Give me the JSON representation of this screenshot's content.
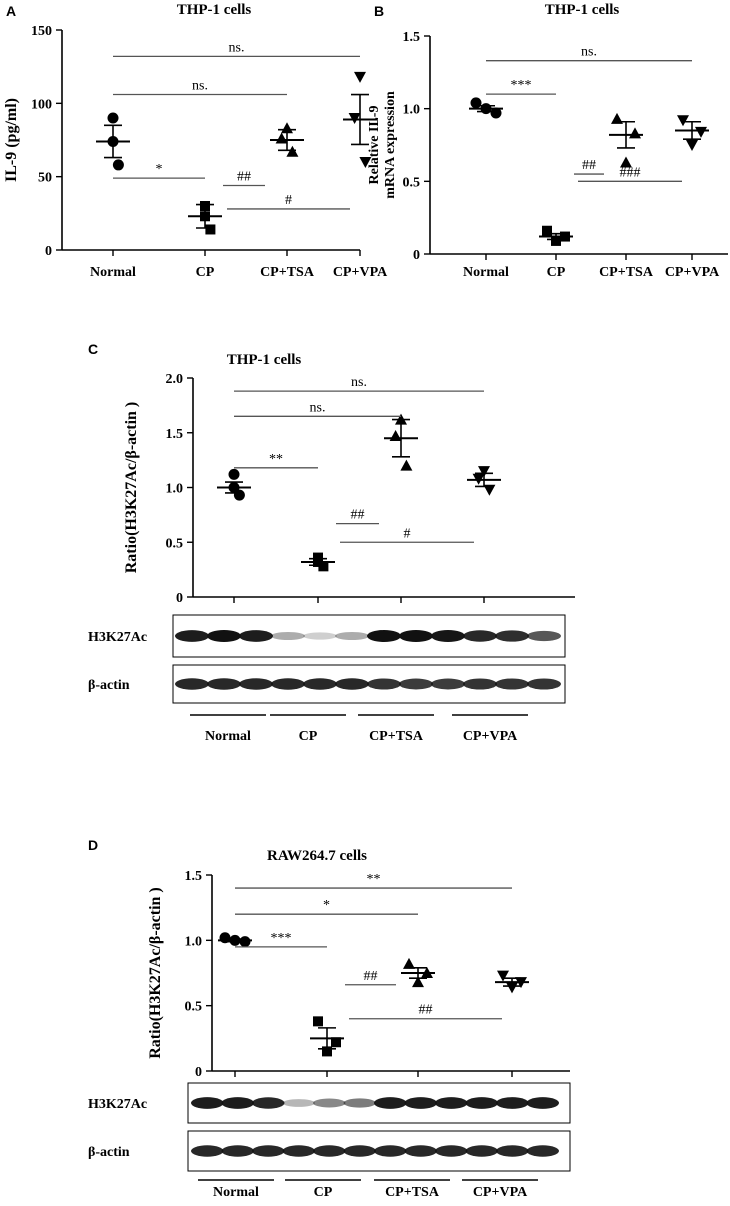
{
  "chart_data": [
    {
      "panel": "A",
      "type": "scatter",
      "title": "THP-1 cells",
      "ylabel": "IL-9 (pg/ml)",
      "categories": [
        "Normal",
        "CP",
        "CP+TSA",
        "CP+VPA"
      ],
      "yticks": [
        "0",
        "50",
        "100",
        "150"
      ],
      "ylim": [
        0,
        150
      ],
      "groups": [
        {
          "name": "Normal",
          "marker": "circle",
          "points": [
            90,
            74,
            58
          ],
          "mean": 74,
          "sem": 11
        },
        {
          "name": "CP",
          "marker": "square",
          "points": [
            30,
            23,
            14
          ],
          "mean": 23,
          "sem": 8
        },
        {
          "name": "CP+TSA",
          "marker": "triangle-up",
          "points": [
            83,
            76,
            67
          ],
          "mean": 75,
          "sem": 7
        },
        {
          "name": "CP+VPA",
          "marker": "triangle-down",
          "points": [
            118,
            90,
            60
          ],
          "mean": 89,
          "sem": 17
        }
      ],
      "annotations": [
        {
          "text": "ns.",
          "from": 0,
          "to": 3,
          "y": 132
        },
        {
          "text": "ns.",
          "from": 0,
          "to": 2,
          "y": 106
        },
        {
          "text": "*",
          "from": 0,
          "to": 1,
          "y": 49
        },
        {
          "text": "##",
          "from": 1,
          "to": 2,
          "y": 44
        },
        {
          "text": "#",
          "from": 1,
          "to": 3,
          "y": 28
        }
      ]
    },
    {
      "panel": "B",
      "type": "scatter",
      "title": "THP-1 cells",
      "ylabel": [
        "Relative IL-9",
        "mRNA expression"
      ],
      "categories": [
        "Normal",
        "CP",
        "CP+TSA",
        "CP+VPA"
      ],
      "yticks": [
        "0",
        "0.5",
        "1.0",
        "1.5"
      ],
      "ylim": [
        0,
        1.5
      ],
      "groups": [
        {
          "name": "Normal",
          "marker": "circle",
          "points": [
            1.04,
            1.0,
            0.97
          ],
          "mean": 1.0,
          "sem": 0.02
        },
        {
          "name": "CP",
          "marker": "square",
          "points": [
            0.16,
            0.12,
            0.09
          ],
          "mean": 0.12,
          "sem": 0.02
        },
        {
          "name": "CP+TSA",
          "marker": "triangle-up",
          "points": [
            0.93,
            0.83,
            0.63
          ],
          "mean": 0.82,
          "sem": 0.09
        },
        {
          "name": "CP+VPA",
          "marker": "triangle-down",
          "points": [
            0.92,
            0.84,
            0.75
          ],
          "mean": 0.85,
          "sem": 0.06
        }
      ],
      "annotations": [
        {
          "text": "ns.",
          "from": 0,
          "to": 3,
          "y": 1.33
        },
        {
          "text": "***",
          "from": 0,
          "to": 1,
          "y": 1.1
        },
        {
          "text": "##",
          "from": 1,
          "to": 2,
          "y": 0.55
        },
        {
          "text": "###",
          "from": 1,
          "to": 3,
          "y": 0.5
        }
      ]
    },
    {
      "panel": "C",
      "type": "scatter",
      "title": "THP-1 cells",
      "ylabel": "Ratio(H3K27Ac/β-actin )",
      "categories": [
        "Normal",
        "CP",
        "CP+TSA",
        "CP+VPA"
      ],
      "yticks": [
        "0",
        "0.5",
        "1.0",
        "1.5",
        "2.0"
      ],
      "ylim": [
        0,
        2.0
      ],
      "groups": [
        {
          "name": "Normal",
          "marker": "circle",
          "points": [
            1.12,
            1.0,
            0.93
          ],
          "mean": 1.0,
          "sem": 0.05
        },
        {
          "name": "CP",
          "marker": "square",
          "points": [
            0.36,
            0.32,
            0.28
          ],
          "mean": 0.32,
          "sem": 0.03
        },
        {
          "name": "CP+TSA",
          "marker": "triangle-up",
          "points": [
            1.62,
            1.47,
            1.2
          ],
          "mean": 1.45,
          "sem": 0.17
        },
        {
          "name": "CP+VPA",
          "marker": "triangle-down",
          "points": [
            1.15,
            1.08,
            0.98
          ],
          "mean": 1.07,
          "sem": 0.06
        }
      ],
      "annotations": [
        {
          "text": "ns.",
          "from": 0,
          "to": 3,
          "y": 1.88
        },
        {
          "text": "ns.",
          "from": 0,
          "to": 2,
          "y": 1.65
        },
        {
          "text": "**",
          "from": 0,
          "to": 1,
          "y": 1.18
        },
        {
          "text": "##",
          "from": 1,
          "to": 2,
          "y": 0.67
        },
        {
          "text": "#",
          "from": 1,
          "to": 3,
          "y": 0.5
        }
      ]
    },
    {
      "panel": "D",
      "type": "scatter",
      "title": "RAW264.7 cells",
      "ylabel": "Ratio(H3K27Ac/β-actin )",
      "categories": [
        "Normal",
        "CP",
        "CP+TSA",
        "CP+VPA"
      ],
      "yticks": [
        "0",
        "0.5",
        "1.0",
        "1.5"
      ],
      "ylim": [
        0,
        1.5
      ],
      "groups": [
        {
          "name": "Normal",
          "marker": "circle",
          "points": [
            1.02,
            1.0,
            0.99
          ],
          "mean": 1.0,
          "sem": 0.01
        },
        {
          "name": "CP",
          "marker": "square",
          "points": [
            0.38,
            0.22,
            0.15
          ],
          "mean": 0.25,
          "sem": 0.08
        },
        {
          "name": "CP+TSA",
          "marker": "triangle-up",
          "points": [
            0.82,
            0.75,
            0.68
          ],
          "mean": 0.75,
          "sem": 0.04
        },
        {
          "name": "CP+VPA",
          "marker": "triangle-down",
          "points": [
            0.73,
            0.68,
            0.64
          ],
          "mean": 0.68,
          "sem": 0.03
        }
      ],
      "annotations": [
        {
          "text": "**",
          "from": 0,
          "to": 3,
          "y": 1.4
        },
        {
          "text": "*",
          "from": 0,
          "to": 2,
          "y": 1.2
        },
        {
          "text": "***",
          "from": 0,
          "to": 1,
          "y": 0.95
        },
        {
          "text": "##",
          "from": 1,
          "to": 2,
          "y": 0.66
        },
        {
          "text": "##",
          "from": 1,
          "to": 3,
          "y": 0.4
        }
      ]
    }
  ],
  "blots": [
    {
      "panel": "C",
      "rows": [
        {
          "label": "H3K27Ac",
          "lanes": [
            0.95,
            1.0,
            0.95,
            0.35,
            0.2,
            0.35,
            1.0,
            1.0,
            0.98,
            0.9,
            0.88,
            0.7
          ]
        },
        {
          "label": "β-actin",
          "lanes": [
            0.9,
            0.9,
            0.9,
            0.9,
            0.9,
            0.9,
            0.85,
            0.82,
            0.82,
            0.85,
            0.85,
            0.85
          ]
        }
      ],
      "group_labels": [
        "Normal",
        "CP",
        "CP+TSA",
        "CP+VPA"
      ]
    },
    {
      "panel": "D",
      "rows": [
        {
          "label": "H3K27Ac",
          "lanes": [
            0.95,
            0.95,
            0.9,
            0.3,
            0.5,
            0.55,
            0.95,
            0.95,
            0.95,
            0.95,
            0.95,
            0.95
          ]
        },
        {
          "label": "β-actin",
          "lanes": [
            0.9,
            0.9,
            0.9,
            0.9,
            0.9,
            0.9,
            0.9,
            0.9,
            0.9,
            0.9,
            0.9,
            0.9
          ]
        }
      ],
      "group_labels": [
        "Normal",
        "CP",
        "CP+TSA",
        "CP+VPA"
      ]
    }
  ],
  "colors": {
    "ink": "#000000",
    "line": "#555555",
    "background": "#ffffff"
  }
}
